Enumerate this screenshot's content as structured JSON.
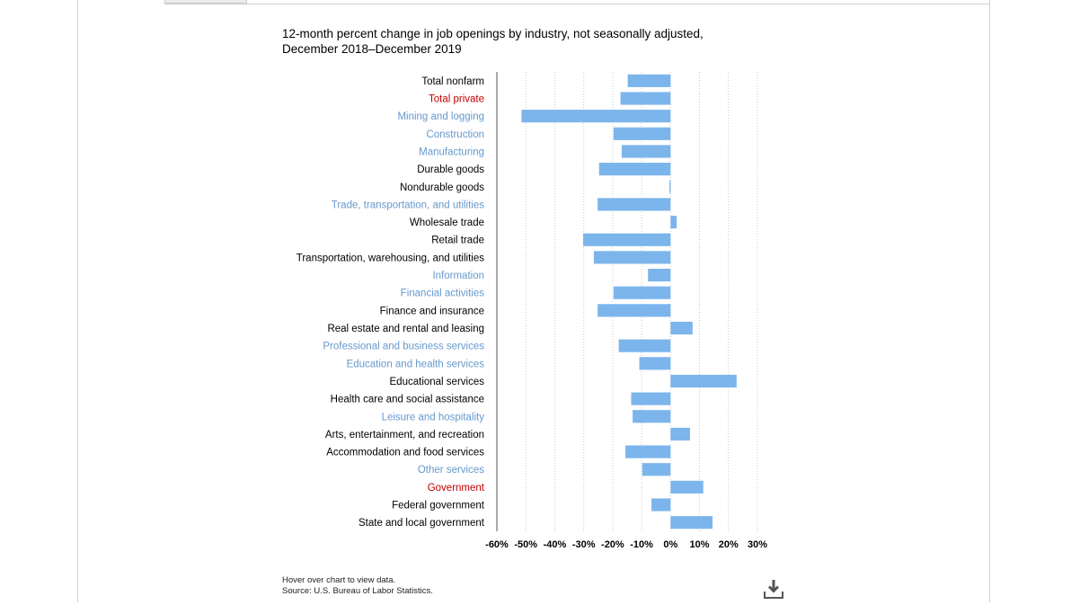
{
  "title_line1": "12-month percent change in job openings by industry, not seasonally adjusted,",
  "title_line2": "December 2018–December 2019",
  "footer": {
    "hover_note": "Hover over chart to view data.",
    "source": "Source: U.S. Bureau of Labor Statistics."
  },
  "download_icon": "download-icon",
  "colors": {
    "bar": "#7cb5ec",
    "label_major": "#6699cc",
    "label_sub": "#000000",
    "label_highlight": "#c00000",
    "grid": "#c8c8c8"
  },
  "chart_data": {
    "type": "bar",
    "orientation": "horizontal",
    "categories": [
      "Total nonfarm",
      "Total private",
      "Mining and logging",
      "Construction",
      "Manufacturing",
      "Durable goods",
      "Nondurable goods",
      "Trade, transportation, and utilities",
      "Wholesale trade",
      "Retail trade",
      "Transportation, warehousing, and utilities",
      "Information",
      "Financial activities",
      "Finance and insurance",
      "Real estate and rental and leasing",
      "Professional and business services",
      "Education and health services",
      "Educational services",
      "Health care and social assistance",
      "Leisure and hospitality",
      "Arts, entertainment, and recreation",
      "Accommodation and food services",
      "Other services",
      "Government",
      "Federal government",
      "State and local government"
    ],
    "category_styles": [
      "sub",
      "highlight",
      "major",
      "major",
      "major",
      "sub",
      "sub",
      "major",
      "sub",
      "sub",
      "sub",
      "major",
      "major",
      "sub",
      "sub",
      "major",
      "major",
      "sub",
      "sub",
      "major",
      "sub",
      "sub",
      "major",
      "highlight",
      "sub",
      "sub"
    ],
    "values": [
      -14.8,
      -17.3,
      -51.5,
      -19.7,
      -16.9,
      -24.7,
      -0.4,
      -25.2,
      2.1,
      -30.2,
      -26.5,
      -7.8,
      -19.7,
      -25.2,
      7.6,
      -17.9,
      -10.8,
      22.8,
      -13.6,
      -13.1,
      6.7,
      -15.6,
      -9.8,
      11.3,
      -6.6,
      14.5
    ],
    "xlim": [
      -60,
      30
    ],
    "xticks": [
      -60,
      -50,
      -40,
      -30,
      -20,
      -10,
      0,
      10,
      20,
      30
    ],
    "xtick_labels": [
      "-60%",
      "-50%",
      "-40%",
      "-30%",
      "-20%",
      "-10%",
      "0%",
      "10%",
      "20%",
      "30%"
    ],
    "grid": true
  }
}
